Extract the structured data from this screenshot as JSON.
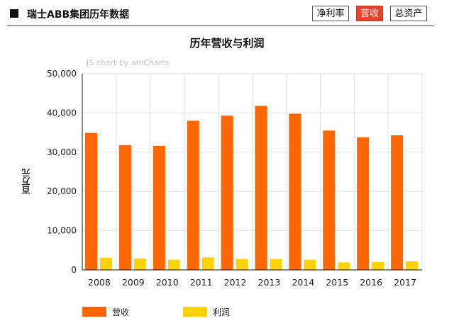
{
  "header": {
    "title": "瑞士ABB集团历年数据",
    "tabs": [
      {
        "label": "净利率",
        "active": false
      },
      {
        "label": "营收",
        "active": true
      },
      {
        "label": "总资产",
        "active": false
      }
    ]
  },
  "chart_data": {
    "type": "bar",
    "title": "历年营收与利润",
    "credit": "JS chart by amCharts",
    "ylabel": "百万元",
    "xlabel": "",
    "ylim": [
      0,
      50000
    ],
    "yticks": [
      0,
      10000,
      20000,
      30000,
      40000,
      50000
    ],
    "ytick_labels": [
      "0",
      "10,000",
      "20,000",
      "30,000",
      "40,000",
      "50,000"
    ],
    "grid": true,
    "legend_position": "bottom-left",
    "categories": [
      "2008",
      "2009",
      "2010",
      "2011",
      "2012",
      "2013",
      "2014",
      "2015",
      "2016",
      "2017"
    ],
    "series": [
      {
        "name": "营收",
        "color": "#ff6600",
        "values": [
          34900,
          31800,
          31600,
          38000,
          39300,
          41800,
          39800,
          35500,
          33800,
          34300
        ]
      },
      {
        "name": "利润",
        "color": "#fcd202",
        "values": [
          3100,
          2900,
          2600,
          3200,
          2800,
          2800,
          2600,
          1900,
          2000,
          2200
        ]
      }
    ]
  }
}
